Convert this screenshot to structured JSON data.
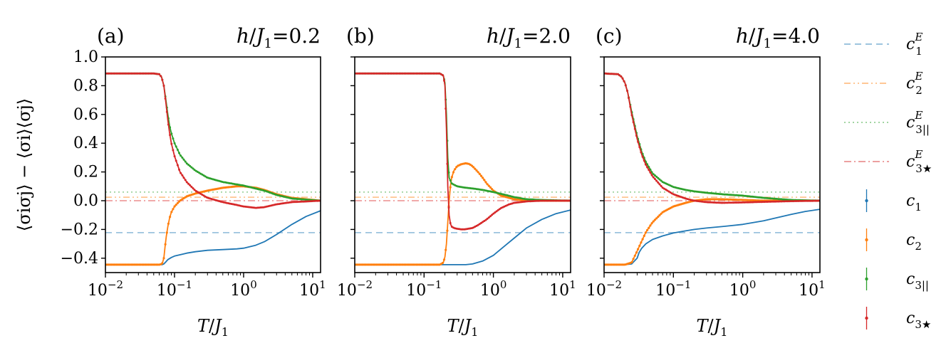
{
  "chart_data": {
    "type": "line",
    "ylabel": "⟨σiσj⟩ − ⟨σi⟩⟨σj⟩",
    "xscale": "log",
    "xlim": [
      0.01,
      13
    ],
    "ylim": [
      -0.5,
      1.0
    ],
    "yticks": [
      "1.0",
      "0.8",
      "0.6",
      "0.4",
      "0.2",
      "0.0",
      "−0.2",
      "−0.4"
    ],
    "xticks": [
      {
        "base": "10",
        "exp": "−2"
      },
      {
        "base": "10",
        "exp": "−1"
      },
      {
        "base": "10",
        "exp": "0"
      },
      {
        "base": "10",
        "exp": "1"
      }
    ],
    "reference_lines": [
      {
        "name": "c1E",
        "value": -0.222,
        "color": "#1f77b4",
        "style": "dashed"
      },
      {
        "name": "c2E",
        "value": 0.024,
        "color": "#ff7f0e",
        "style": "dashdotdot"
      },
      {
        "name": "c3||E",
        "value": 0.06,
        "color": "#2ca02c",
        "style": "dotted"
      },
      {
        "name": "c3★E",
        "value": 0.0,
        "color": "#d62728",
        "style": "dashdot"
      }
    ],
    "panels": [
      {
        "label": "(a)",
        "title": "h/J1=0.2",
        "xlabel": "T/J1",
        "series": [
          {
            "name": "c1",
            "color": "#1f77b4",
            "x": [
              0.01,
              0.05,
              0.066,
              0.07,
              0.075,
              0.08,
              0.09,
              0.1,
              0.15,
              0.2,
              0.3,
              0.5,
              0.8,
              1,
              1.5,
              2,
              3,
              5,
              8,
              13
            ],
            "y": [
              -0.445,
              -0.445,
              -0.445,
              -0.44,
              -0.425,
              -0.41,
              -0.395,
              -0.385,
              -0.365,
              -0.355,
              -0.345,
              -0.34,
              -0.335,
              -0.33,
              -0.31,
              -0.285,
              -0.235,
              -0.165,
              -0.11,
              -0.07
            ]
          },
          {
            "name": "c2",
            "color": "#ff7f0e",
            "x": [
              0.01,
              0.06,
              0.066,
              0.07,
              0.073,
              0.076,
              0.08,
              0.085,
              0.09,
              0.1,
              0.12,
              0.15,
              0.2,
              0.3,
              0.5,
              0.8,
              1,
              1.5,
              2,
              3,
              5,
              13
            ],
            "y": [
              -0.445,
              -0.445,
              -0.44,
              -0.4,
              -0.32,
              -0.25,
              -0.18,
              -0.12,
              -0.08,
              -0.04,
              0.0,
              0.03,
              0.05,
              0.07,
              0.09,
              0.1,
              0.1,
              0.09,
              0.075,
              0.045,
              0.02,
              0.0
            ]
          },
          {
            "name": "c3||",
            "color": "#2ca02c",
            "x": [
              0.01,
              0.05,
              0.06,
              0.065,
              0.07,
              0.075,
              0.08,
              0.085,
              0.09,
              0.1,
              0.12,
              0.15,
              0.2,
              0.3,
              0.5,
              1,
              2,
              3,
              5,
              13
            ],
            "y": [
              0.885,
              0.885,
              0.88,
              0.86,
              0.8,
              0.7,
              0.6,
              0.52,
              0.47,
              0.4,
              0.32,
              0.26,
              0.21,
              0.16,
              0.13,
              0.105,
              0.07,
              0.04,
              0.015,
              0.0
            ]
          },
          {
            "name": "c3★",
            "color": "#d62728",
            "x": [
              0.01,
              0.05,
              0.06,
              0.065,
              0.07,
              0.075,
              0.08,
              0.085,
              0.09,
              0.1,
              0.12,
              0.15,
              0.2,
              0.3,
              0.5,
              0.8,
              1,
              1.5,
              2,
              3,
              5,
              13
            ],
            "y": [
              0.885,
              0.885,
              0.88,
              0.86,
              0.8,
              0.68,
              0.56,
              0.47,
              0.4,
              0.31,
              0.2,
              0.13,
              0.07,
              0.02,
              -0.01,
              -0.03,
              -0.04,
              -0.05,
              -0.045,
              -0.025,
              -0.01,
              0.0
            ]
          }
        ]
      },
      {
        "label": "(b)",
        "title": "h/J1=2.0",
        "xlabel": "T/J1",
        "series": [
          {
            "name": "c1",
            "color": "#1f77b4",
            "x": [
              0.01,
              0.2,
              0.3,
              0.4,
              0.5,
              0.7,
              1,
              1.5,
              2,
              3,
              5,
              8,
              13
            ],
            "y": [
              -0.445,
              -0.445,
              -0.445,
              -0.445,
              -0.44,
              -0.42,
              -0.38,
              -0.31,
              -0.26,
              -0.19,
              -0.13,
              -0.09,
              -0.065
            ]
          },
          {
            "name": "c2",
            "color": "#ff7f0e",
            "x": [
              0.01,
              0.17,
              0.19,
              0.2,
              0.21,
              0.22,
              0.23,
              0.24,
              0.25,
              0.27,
              0.3,
              0.35,
              0.4,
              0.45,
              0.5,
              0.6,
              0.7,
              0.8,
              1,
              1.3,
              2,
              3,
              13
            ],
            "y": [
              -0.445,
              -0.445,
              -0.43,
              -0.39,
              -0.3,
              -0.15,
              0.0,
              0.1,
              0.16,
              0.21,
              0.24,
              0.255,
              0.26,
              0.255,
              0.24,
              0.2,
              0.16,
              0.12,
              0.07,
              0.035,
              0.01,
              0.0,
              0.0
            ]
          },
          {
            "name": "c3||",
            "color": "#2ca02c",
            "x": [
              0.01,
              0.17,
              0.19,
              0.2,
              0.21,
              0.22,
              0.23,
              0.25,
              0.3,
              0.4,
              0.5,
              0.7,
              1,
              1.5,
              2,
              3,
              5,
              13
            ],
            "y": [
              0.885,
              0.885,
              0.87,
              0.82,
              0.6,
              0.3,
              0.16,
              0.12,
              0.1,
              0.09,
              0.085,
              0.075,
              0.06,
              0.04,
              0.025,
              0.01,
              0.005,
              0.0
            ]
          },
          {
            "name": "c3★",
            "color": "#d62728",
            "x": [
              0.01,
              0.17,
              0.19,
              0.2,
              0.21,
              0.22,
              0.23,
              0.24,
              0.25,
              0.27,
              0.3,
              0.35,
              0.4,
              0.5,
              0.6,
              0.8,
              1,
              1.3,
              1.7,
              2,
              3,
              5,
              13
            ],
            "y": [
              0.885,
              0.885,
              0.87,
              0.8,
              0.5,
              0.1,
              -0.1,
              -0.16,
              -0.18,
              -0.19,
              -0.195,
              -0.2,
              -0.198,
              -0.19,
              -0.17,
              -0.13,
              -0.09,
              -0.05,
              -0.025,
              -0.015,
              -0.005,
              0.0,
              0.0
            ]
          }
        ]
      },
      {
        "label": "(c)",
        "title": "h/J1=4.0",
        "xlabel": "T/J1",
        "series": [
          {
            "name": "c1",
            "color": "#1f77b4",
            "x": [
              0.01,
              0.02,
              0.025,
              0.03,
              0.032,
              0.035,
              0.04,
              0.05,
              0.07,
              0.1,
              0.15,
              0.2,
              0.3,
              0.5,
              1,
              2,
              3,
              5,
              8,
              13
            ],
            "y": [
              -0.445,
              -0.445,
              -0.44,
              -0.4,
              -0.36,
              -0.33,
              -0.3,
              -0.27,
              -0.245,
              -0.225,
              -0.21,
              -0.2,
              -0.19,
              -0.18,
              -0.165,
              -0.14,
              -0.12,
              -0.095,
              -0.075,
              -0.06
            ]
          },
          {
            "name": "c2",
            "color": "#ff7f0e",
            "x": [
              0.01,
              0.02,
              0.025,
              0.03,
              0.035,
              0.04,
              0.05,
              0.07,
              0.1,
              0.15,
              0.2,
              0.3,
              0.5,
              1,
              2,
              13
            ],
            "y": [
              -0.445,
              -0.445,
              -0.43,
              -0.35,
              -0.28,
              -0.22,
              -0.15,
              -0.08,
              -0.04,
              -0.015,
              0.0,
              0.01,
              0.01,
              0.005,
              0.0,
              0.0
            ]
          },
          {
            "name": "c3||",
            "color": "#2ca02c",
            "x": [
              0.01,
              0.016,
              0.018,
              0.02,
              0.022,
              0.025,
              0.03,
              0.035,
              0.04,
              0.05,
              0.07,
              0.1,
              0.15,
              0.2,
              0.3,
              0.5,
              1,
              2,
              5,
              13
            ],
            "y": [
              0.885,
              0.88,
              0.86,
              0.82,
              0.75,
              0.62,
              0.45,
              0.34,
              0.27,
              0.19,
              0.13,
              0.095,
              0.075,
              0.065,
              0.055,
              0.045,
              0.035,
              0.02,
              0.005,
              0.0
            ]
          },
          {
            "name": "c3★",
            "color": "#d62728",
            "x": [
              0.01,
              0.016,
              0.018,
              0.02,
              0.022,
              0.025,
              0.03,
              0.035,
              0.04,
              0.05,
              0.07,
              0.1,
              0.15,
              0.2,
              0.3,
              0.5,
              1,
              2,
              5,
              13
            ],
            "y": [
              0.885,
              0.88,
              0.86,
              0.82,
              0.75,
              0.6,
              0.43,
              0.32,
              0.25,
              0.17,
              0.09,
              0.045,
              0.015,
              0.0,
              -0.01,
              -0.015,
              -0.012,
              -0.008,
              -0.003,
              0.0
            ]
          }
        ]
      }
    ],
    "legend": {
      "placement": "right",
      "entries": [
        {
          "base": "c",
          "sup": "E",
          "sub": "1",
          "color": "#1f77b4",
          "kind": "dashed"
        },
        {
          "base": "c",
          "sup": "E",
          "sub": "2",
          "color": "#ff7f0e",
          "kind": "dashdotdot"
        },
        {
          "base": "c",
          "sup": "E",
          "sub": "3||",
          "color": "#2ca02c",
          "kind": "dotted"
        },
        {
          "base": "c",
          "sup": "E",
          "sub": "3★",
          "color": "#d62728",
          "kind": "dashdot"
        },
        {
          "base": "c",
          "sup": "",
          "sub": "1",
          "color": "#1f77b4",
          "kind": "errorbar"
        },
        {
          "base": "c",
          "sup": "",
          "sub": "2",
          "color": "#ff7f0e",
          "kind": "errorbar"
        },
        {
          "base": "c",
          "sup": "",
          "sub": "3||",
          "color": "#2ca02c",
          "kind": "errorbar"
        },
        {
          "base": "c",
          "sup": "",
          "sub": "3★",
          "color": "#d62728",
          "kind": "errorbar"
        }
      ]
    }
  }
}
